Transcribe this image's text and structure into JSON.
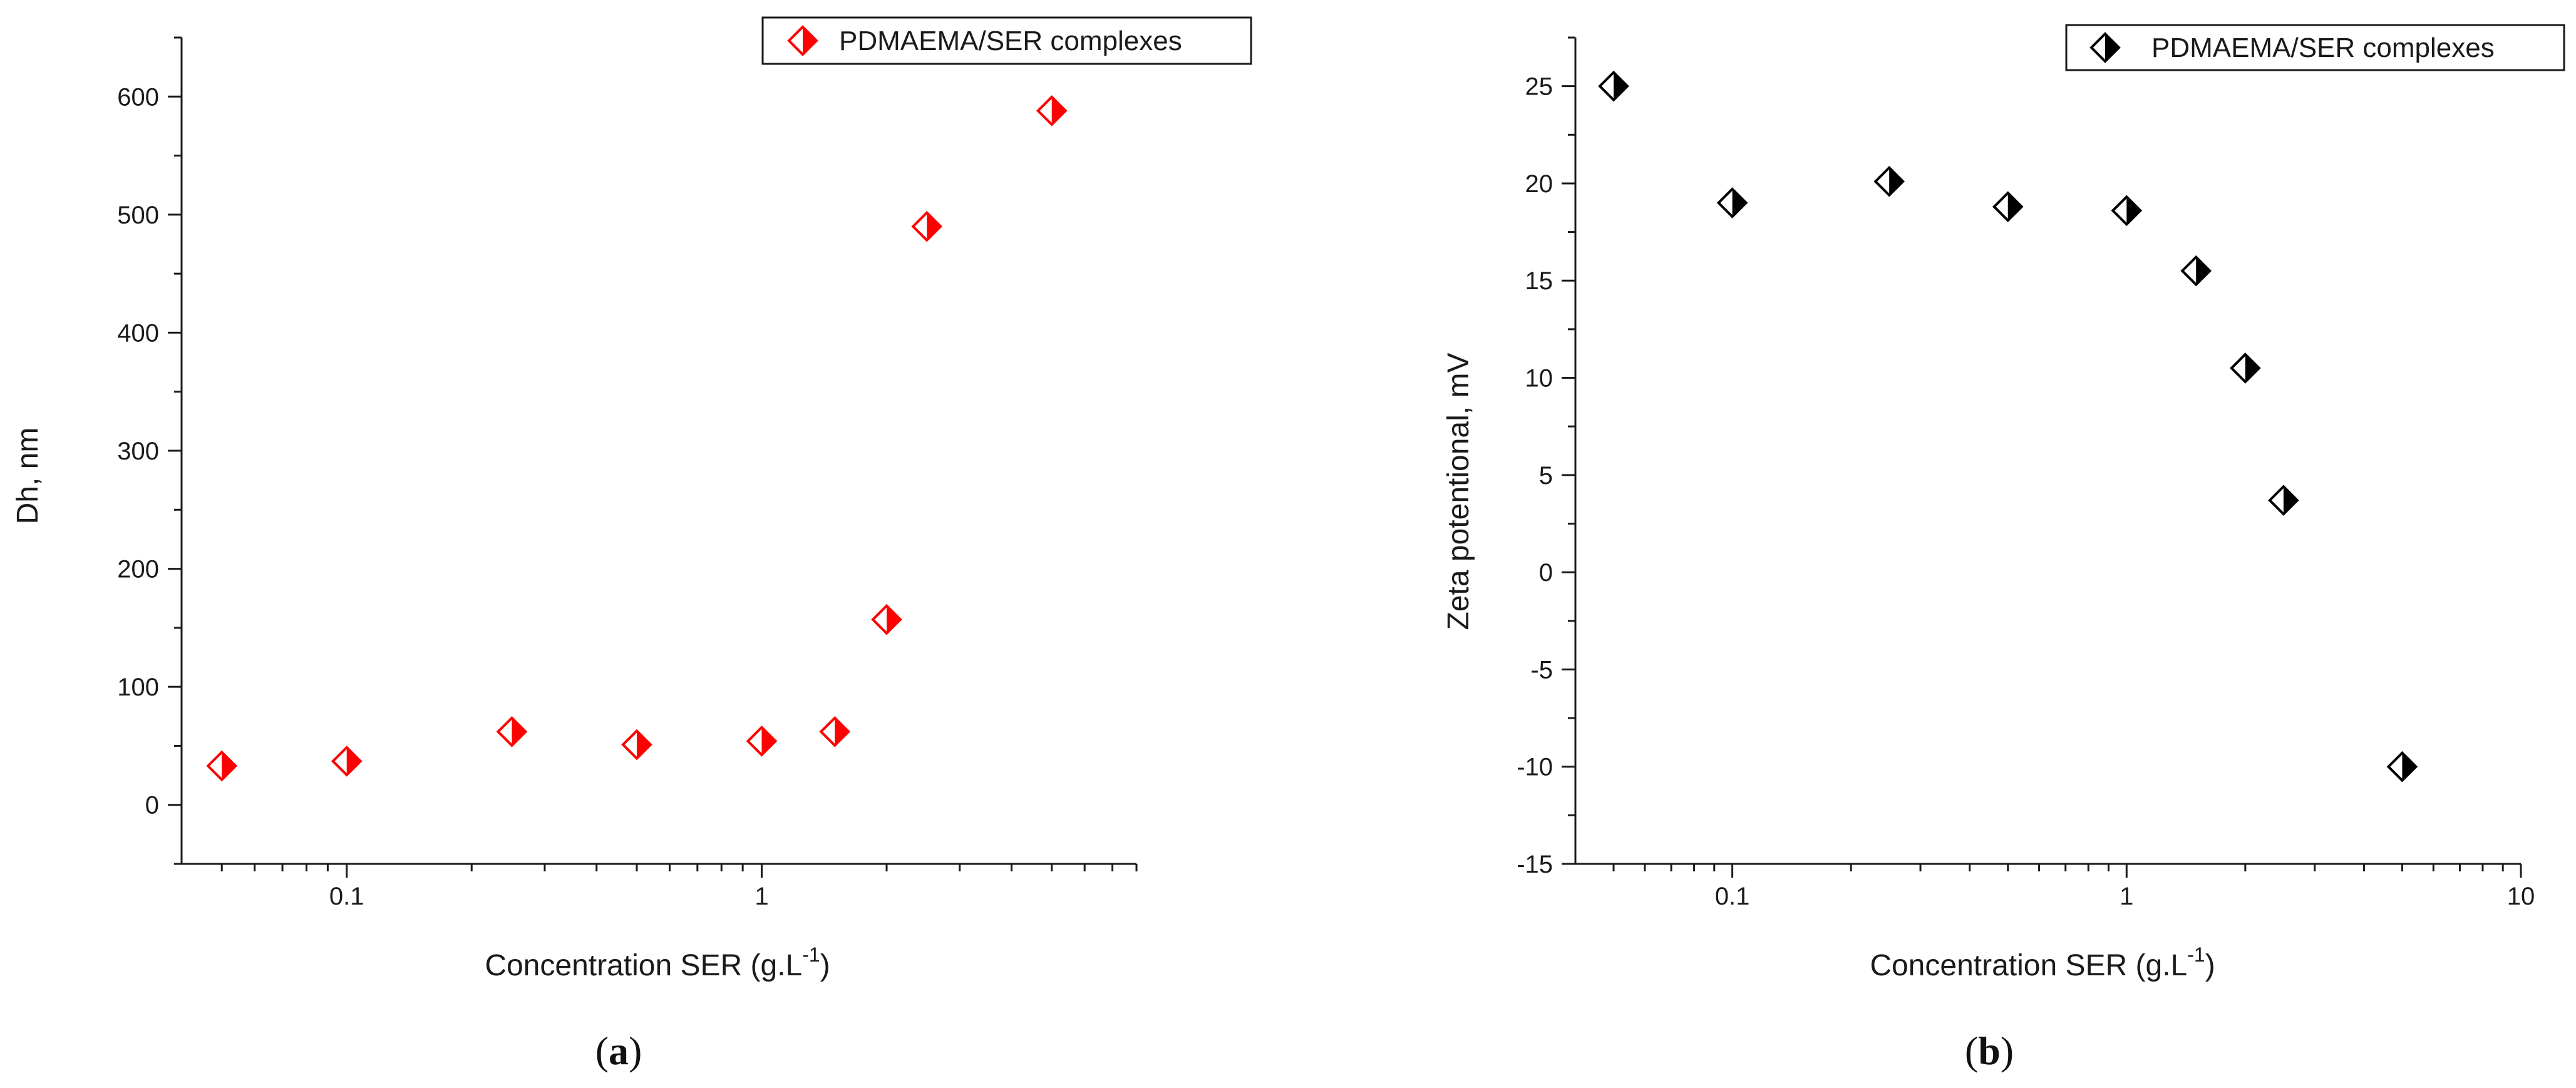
{
  "chart_data": [
    {
      "type": "scatter",
      "panel_label": "a",
      "xlabel": "Concentration SER (g.L",
      "xlabel_sup": "-1",
      "xlabel_close": ")",
      "ylabel": "Dh, nm",
      "xscale": "log",
      "xlim": [
        0.04,
        8
      ],
      "ylim": [
        -50,
        650
      ],
      "xticks": [
        0.1,
        1
      ],
      "xtick_labels": [
        "0.1",
        "1"
      ],
      "yticks": [
        0,
        100,
        200,
        300,
        400,
        500,
        600
      ],
      "ytick_labels": [
        "0",
        "100",
        "200",
        "300",
        "400",
        "500",
        "600"
      ],
      "legend_position": "top-right",
      "series": [
        {
          "name": "PDMAEMA/SER complexes",
          "color": "#ff0000",
          "marker": "half-filled-diamond",
          "x": [
            0.05,
            0.1,
            0.25,
            0.5,
            1,
            1.5,
            2,
            2.5,
            5
          ],
          "y": [
            33,
            37,
            62,
            51,
            54,
            62,
            157,
            490,
            588
          ]
        }
      ]
    },
    {
      "type": "scatter",
      "panel_label": "b",
      "xlabel": "Concentration SER (g.L",
      "xlabel_sup": "-1",
      "xlabel_close": ")",
      "ylabel": "Zeta potentional, mV",
      "xscale": "log",
      "xlim": [
        0.04,
        10
      ],
      "ylim": [
        -15,
        27.5
      ],
      "xticks": [
        0.1,
        1,
        10
      ],
      "xtick_labels": [
        "0.1",
        "1",
        "10"
      ],
      "yticks": [
        -15,
        -10,
        -5,
        0,
        5,
        10,
        15,
        20,
        25
      ],
      "ytick_labels": [
        "-15",
        "-10",
        "-5",
        "0",
        "5",
        "10",
        "15",
        "20",
        "25"
      ],
      "legend_position": "top-right",
      "series": [
        {
          "name": "PDMAEMA/SER complexes",
          "color": "#000000",
          "marker": "half-filled-diamond",
          "x": [
            0.05,
            0.1,
            0.25,
            0.5,
            1,
            1.5,
            2,
            2.5,
            5
          ],
          "y": [
            25,
            19,
            20.1,
            18.8,
            18.6,
            15.5,
            10.5,
            3.7,
            -10
          ]
        }
      ]
    }
  ]
}
